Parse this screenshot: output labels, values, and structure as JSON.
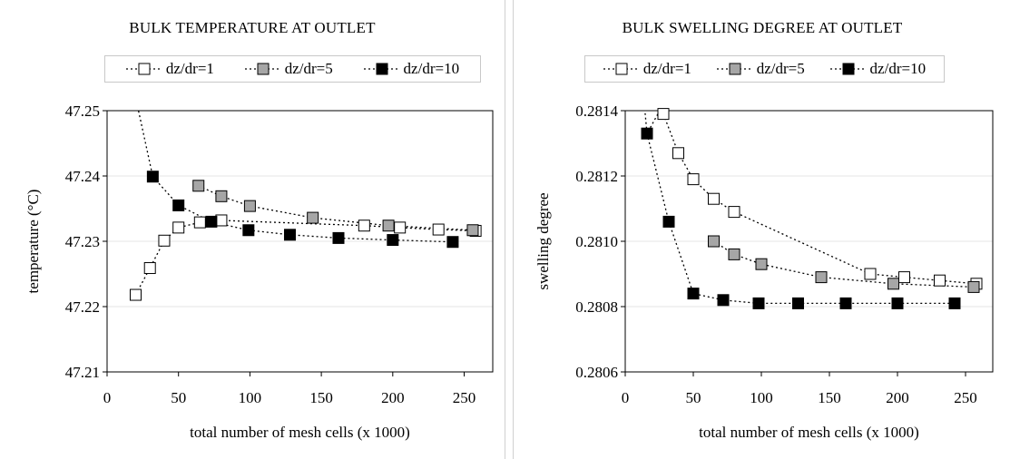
{
  "colors": {
    "dz_dr_1": "#ffffff",
    "dz_dr_5": "#a6a6a6",
    "dz_dr_10": "#000000"
  },
  "chart_data": [
    {
      "type": "scatter",
      "title": "BULK TEMPERATURE AT OUTLET",
      "xlabel": "total number of mesh cells (x 1000)",
      "ylabel": "temperature (°C)",
      "xlim": [
        0,
        270
      ],
      "ylim": [
        47.21,
        47.25
      ],
      "x_ticks": [
        "0",
        "50",
        "100",
        "150",
        "200",
        "250"
      ],
      "y_ticks": [
        "47.21",
        "47.22",
        "47.23",
        "47.24",
        "47.25"
      ],
      "grid": true,
      "legend_position": "top",
      "series": [
        {
          "name": "dz/dr=1",
          "marker": "hollow-square",
          "x": [
            20,
            30,
            40,
            50,
            65,
            80,
            180,
            205,
            232,
            258
          ],
          "y": [
            47.2218,
            47.2259,
            47.2301,
            47.2321,
            47.2329,
            47.2332,
            47.2324,
            47.2321,
            47.2318,
            47.2316
          ]
        },
        {
          "name": "dz/dr=5",
          "marker": "gray-square",
          "x": [
            64,
            80,
            100,
            144,
            197,
            256
          ],
          "y": [
            47.2385,
            47.2369,
            47.2354,
            47.2336,
            47.2324,
            47.2317
          ]
        },
        {
          "name": "dz/dr=10",
          "marker": "black-square",
          "x": [
            32,
            50,
            73,
            99,
            128,
            162,
            200,
            242
          ],
          "y": [
            47.2399,
            47.2355,
            47.233,
            47.2317,
            47.231,
            47.2305,
            47.2302,
            47.2299
          ]
        }
      ],
      "extension": {
        "x": [
          20,
          32
        ],
        "y": [
          47.252,
          47.2399
        ]
      }
    },
    {
      "type": "scatter",
      "title": "BULK SWELLING DEGREE AT OUTLET",
      "xlabel": "total number of mesh cells (x 1000)",
      "ylabel": "swelling degree",
      "xlim": [
        0,
        270
      ],
      "ylim": [
        0.2806,
        0.2814
      ],
      "x_ticks": [
        "0",
        "50",
        "100",
        "150",
        "200",
        "250"
      ],
      "y_ticks": [
        "0.2806",
        "0.2808",
        "0.2810",
        "0.2812",
        "0.2814"
      ],
      "grid": true,
      "legend_position": "top",
      "series": [
        {
          "name": "dz/dr=1",
          "marker": "hollow-square",
          "x": [
            28,
            39,
            50,
            65,
            80,
            180,
            205,
            231,
            258
          ],
          "y": [
            0.28139,
            0.28127,
            0.28119,
            0.28113,
            0.28109,
            0.2809,
            0.28089,
            0.28088,
            0.28087
          ]
        },
        {
          "name": "dz/dr=5",
          "marker": "gray-square",
          "x": [
            65,
            80,
            100,
            144,
            197,
            256
          ],
          "y": [
            0.281,
            0.28096,
            0.28093,
            0.28089,
            0.28087,
            0.28086
          ]
        },
        {
          "name": "dz/dr=10",
          "marker": "black-square",
          "x": [
            16,
            32,
            50,
            72,
            98,
            127,
            162,
            200,
            242
          ],
          "y": [
            0.28133,
            0.28106,
            0.28084,
            0.28082,
            0.28081,
            0.28081,
            0.28081,
            0.28081,
            0.28081
          ]
        }
      ],
      "extension": {
        "x": [
          14,
          16,
          28
        ],
        "y": [
          0.28142,
          0.28133,
          0.28142
        ]
      }
    }
  ]
}
